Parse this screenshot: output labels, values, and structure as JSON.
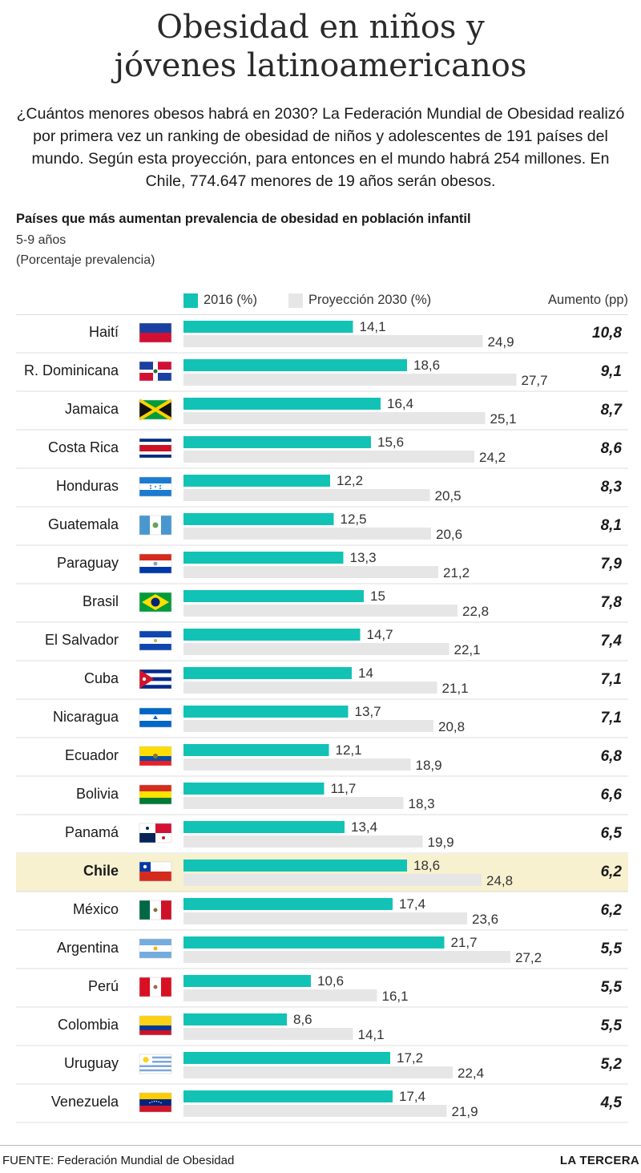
{
  "header": {
    "title_line1": "Obesidad en niños y",
    "title_line2": "jóvenes latinoamericanos",
    "intro": "¿Cuántos menores obesos habrá en 2030? La Federación Mundial de Obesidad realizó por primera vez un ranking de obesidad de niños y adolescentes de 191 países del mundo. Según esta proyección, para entonces en el mundo habrá 254 millones. En Chile, 774.647 menores de 19 años serán obesos."
  },
  "chart_header": {
    "subtitle": "Países que más aumentan prevalencia de obesidad en población infantil",
    "age_range": "5-9 años",
    "unit_note": "(Porcentaje prevalencia)"
  },
  "legend": {
    "series_2016": "2016 (%)",
    "series_2030": "Proyección 2030 (%)",
    "increase_label": "Aumento (pp)"
  },
  "colors": {
    "bar_2016": "#12c3b5",
    "bar_2030": "#e6e6e6",
    "highlight_row": "#f7f1cf",
    "separator": "#dcdcdc"
  },
  "chart_data": {
    "type": "bar",
    "orientation": "horizontal",
    "categories": [
      "Haití",
      "R. Dominicana",
      "Jamaica",
      "Costa Rica",
      "Honduras",
      "Guatemala",
      "Paraguay",
      "Brasil",
      "El Salvador",
      "Cuba",
      "Nicaragua",
      "Ecuador",
      "Bolivia",
      "Panamá",
      "Chile",
      "México",
      "Argentina",
      "Perú",
      "Colombia",
      "Uruguay",
      "Venezuela"
    ],
    "value_labels_2016": [
      "14,1",
      "18,6",
      "16,4",
      "15,6",
      "12,2",
      "12,5",
      "13,3",
      "15",
      "14,7",
      "14",
      "13,7",
      "12,1",
      "11,7",
      "13,4",
      "18,6",
      "17,4",
      "21,7",
      "10,6",
      "8,6",
      "17,2",
      "17,4"
    ],
    "value_labels_2030": [
      "24,9",
      "27,7",
      "25,1",
      "24,2",
      "20,5",
      "20,6",
      "21,2",
      "22,8",
      "22,1",
      "21,1",
      "20,8",
      "18,9",
      "18,3",
      "19,9",
      "24,8",
      "23,6",
      "27,2",
      "16,1",
      "14,1",
      "22,4",
      "21,9"
    ],
    "increase_labels": [
      "10,8",
      "9,1",
      "8,7",
      "8,6",
      "8,3",
      "8,1",
      "7,9",
      "7,8",
      "7,4",
      "7,1",
      "7,1",
      "6,8",
      "6,6",
      "6,5",
      "6,2",
      "6,2",
      "5,5",
      "5,5",
      "5,5",
      "5,2",
      "4,5"
    ],
    "series": [
      {
        "name": "2016 (%)",
        "values": [
          14.1,
          18.6,
          16.4,
          15.6,
          12.2,
          12.5,
          13.3,
          15.0,
          14.7,
          14.0,
          13.7,
          12.1,
          11.7,
          13.4,
          18.6,
          17.4,
          21.7,
          10.6,
          8.6,
          17.2,
          17.4
        ]
      },
      {
        "name": "Proyección 2030 (%)",
        "values": [
          24.9,
          27.7,
          25.1,
          24.2,
          20.5,
          20.6,
          21.2,
          22.8,
          22.1,
          21.1,
          20.8,
          18.9,
          18.3,
          19.9,
          24.8,
          23.6,
          27.2,
          16.1,
          14.1,
          22.4,
          21.9
        ]
      }
    ],
    "increase": [
      10.8,
      9.1,
      8.7,
      8.6,
      8.3,
      8.1,
      7.9,
      7.8,
      7.4,
      7.1,
      7.1,
      6.8,
      6.6,
      6.5,
      6.2,
      6.2,
      5.5,
      5.5,
      5.5,
      5.2,
      4.5
    ],
    "highlight": "Chile",
    "flag_icons": [
      "haiti-flag-icon",
      "dominican-republic-flag-icon",
      "jamaica-flag-icon",
      "costa-rica-flag-icon",
      "honduras-flag-icon",
      "guatemala-flag-icon",
      "paraguay-flag-icon",
      "brazil-flag-icon",
      "el-salvador-flag-icon",
      "cuba-flag-icon",
      "nicaragua-flag-icon",
      "ecuador-flag-icon",
      "bolivia-flag-icon",
      "panama-flag-icon",
      "chile-flag-icon",
      "mexico-flag-icon",
      "argentina-flag-icon",
      "peru-flag-icon",
      "colombia-flag-icon",
      "uruguay-flag-icon",
      "venezuela-flag-icon"
    ],
    "xlim": [
      0,
      28
    ]
  },
  "footer": {
    "source": "FUENTE: Federación Mundial de Obesidad",
    "brand": "LA TERCERA"
  }
}
